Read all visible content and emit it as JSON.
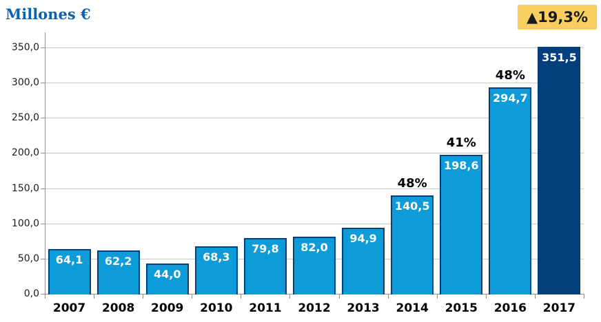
{
  "title": "Millones €",
  "badge": {
    "label": "▲19,3%",
    "bg_color": "#f8ce5e",
    "text_color": "#1a1a1a"
  },
  "colors": {
    "bar_fill": "#0e9cd8",
    "bar_border": "#043f7d",
    "highlight_fill": "#043f7d",
    "title_text": "#0a62ae",
    "gridline": "#c9c9c9",
    "axis": "#8f8f8f",
    "value_label": "#ffffff",
    "growth_label": "#000000",
    "tick_label": "#1a1a1a"
  },
  "chart_data": {
    "type": "bar",
    "title": "Millones €",
    "ylabel": "Millones €",
    "xlabel": "",
    "categories": [
      "2007",
      "2008",
      "2009",
      "2010",
      "2011",
      "2012",
      "2013",
      "2014",
      "2015",
      "2016",
      "2017"
    ],
    "values": [
      64.1,
      62.2,
      44.0,
      68.3,
      79.8,
      82.0,
      94.9,
      140.5,
      198.6,
      294.7,
      351.5
    ],
    "value_labels": [
      "64,1",
      "62,2",
      "44,0",
      "68,3",
      "79,8",
      "82,0",
      "94,9",
      "140,5",
      "198,6",
      "294,7",
      "351,5"
    ],
    "growth_labels": [
      "",
      "",
      "",
      "",
      "",
      "",
      "",
      "48%",
      "41%",
      "48%",
      ""
    ],
    "highlight_index": 10,
    "badge_annotation": "▲19,3%",
    "ylim": [
      0,
      350
    ],
    "ytick_step": 50,
    "ytick_labels": [
      "0,0",
      "50,0",
      "100,0",
      "150,0",
      "200,0",
      "250,0",
      "300,0",
      "350,0"
    ],
    "grid": true,
    "legend": false
  }
}
